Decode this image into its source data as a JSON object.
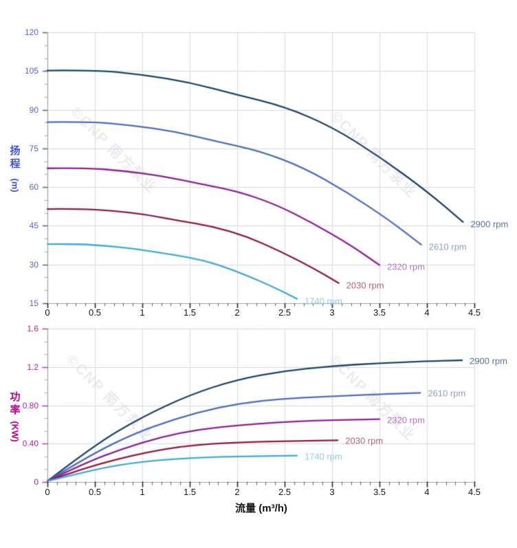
{
  "watermark": {
    "text": "©CNP 南方泵业",
    "color": "#ececf0"
  },
  "style": {
    "background": "#ffffff",
    "grid_color": "#d9d9d9",
    "spine_color": "#9aa0ab",
    "x_tick_color": "#23232b",
    "x_minor_tick_color": "#5a5a62",
    "x_tick_label_color": "#15151c",
    "x_title_color": "#121216",
    "head": {
      "axis_title_color": "#3b55e0",
      "tick_label_color": "#5465e6",
      "tick_color": "#5d6578",
      "minor_tick_color": "#97a0d0"
    },
    "power": {
      "axis_title_color": "#c2008f",
      "tick_label_color": "#cb1d9f",
      "tick_color": "#c23898",
      "minor_tick_color": "#ee86cc"
    }
  },
  "chart_data": [
    {
      "type": "line",
      "title": "",
      "xlabel": "",
      "ylabel": "扬程 (m)",
      "ylabel_chars": [
        "扬",
        "程"
      ],
      "ylabel_unit": "(m)",
      "xlim": [
        0,
        4.5
      ],
      "ylim": [
        15,
        120
      ],
      "grid": true,
      "legend_position": "line-end-labels",
      "x_ticks": [
        "0",
        "0.5",
        "1",
        "1.5",
        "2",
        "2.5",
        "3",
        "3.5",
        "4",
        "4.5"
      ],
      "y_ticks": [
        "15",
        "30",
        "45",
        "60",
        "75",
        "90",
        "105",
        "120"
      ],
      "x_minor_step": 0.1,
      "y_minor_step": 5,
      "series": [
        {
          "name": "2900 rpm",
          "color": "#17456e",
          "label_color": "#56779c",
          "points": [
            [
              0,
              105.2
            ],
            [
              0.5,
              105.4
            ],
            [
              1,
              103.6
            ],
            [
              1.5,
              100.6
            ],
            [
              2,
              95.8
            ],
            [
              2.5,
              91.2
            ],
            [
              3,
              83.4
            ],
            [
              3.5,
              71.8
            ],
            [
              4,
              58.4
            ],
            [
              4.38,
              46.5
            ]
          ]
        },
        {
          "name": "2610 rpm",
          "color": "#4a6cc0",
          "label_color": "#8c9fdc",
          "points": [
            [
              0,
              85.2
            ],
            [
              0.45,
              85.4
            ],
            [
              0.9,
              83.9
            ],
            [
              1.35,
              81.5
            ],
            [
              1.8,
              77.6
            ],
            [
              2.25,
              73.9
            ],
            [
              2.7,
              67.6
            ],
            [
              3.15,
              58.2
            ],
            [
              3.6,
              47.3
            ],
            [
              3.94,
              37.7
            ]
          ]
        },
        {
          "name": "2320 rpm",
          "color": "#8d1e97",
          "label_color": "#b873c8",
          "points": [
            [
              0,
              67.3
            ],
            [
              0.4,
              67.5
            ],
            [
              0.8,
              66.3
            ],
            [
              1.2,
              64.4
            ],
            [
              1.6,
              61.3
            ],
            [
              2.0,
              58.4
            ],
            [
              2.4,
              53.4
            ],
            [
              2.8,
              46.0
            ],
            [
              3.2,
              37.4
            ],
            [
              3.5,
              29.8
            ]
          ]
        },
        {
          "name": "2030 rpm",
          "color": "#8f1a39",
          "label_color": "#b9647f",
          "points": [
            [
              0,
              51.5
            ],
            [
              0.35,
              51.6
            ],
            [
              0.7,
              50.8
            ],
            [
              1.05,
              49.3
            ],
            [
              1.4,
              46.9
            ],
            [
              1.75,
              44.7
            ],
            [
              2.1,
              40.9
            ],
            [
              2.45,
              35.2
            ],
            [
              2.8,
              28.6
            ],
            [
              3.07,
              22.8
            ]
          ]
        },
        {
          "name": "1740 rpm",
          "color": "#3fa8dc",
          "label_color": "#90cbec",
          "points": [
            [
              0,
              37.9
            ],
            [
              0.3,
              38.0
            ],
            [
              0.6,
              37.3
            ],
            [
              0.9,
              36.2
            ],
            [
              1.2,
              34.5
            ],
            [
              1.5,
              32.8
            ],
            [
              1.8,
              30.0
            ],
            [
              2.1,
              25.8
            ],
            [
              2.4,
              21.0
            ],
            [
              2.63,
              16.7
            ]
          ]
        }
      ]
    },
    {
      "type": "line",
      "title": "",
      "xlabel": "流量 (m³/h)",
      "ylabel": "功率 (KW)",
      "ylabel_chars": [
        "功",
        "率"
      ],
      "ylabel_unit": "(KW)",
      "xlim": [
        0,
        4.5
      ],
      "ylim": [
        0,
        1.6
      ],
      "grid": true,
      "legend_position": "line-end-labels",
      "x_ticks": [
        "0",
        "0.5",
        "1",
        "1.5",
        "2",
        "2.5",
        "3",
        "3.5",
        "4",
        "4.5"
      ],
      "y_ticks": [
        "0",
        "0.40",
        "0.80",
        "1.2",
        "1.6"
      ],
      "x_minor_step": 0.1,
      "y_minor_step": 0.13333,
      "series": [
        {
          "name": "2900 rpm",
          "color": "#17456e",
          "label_color": "#56779c",
          "points": [
            [
              0,
              0.01
            ],
            [
              0.5,
              0.39
            ],
            [
              1,
              0.68
            ],
            [
              1.5,
              0.91
            ],
            [
              2,
              1.07
            ],
            [
              2.5,
              1.16
            ],
            [
              3,
              1.21
            ],
            [
              3.5,
              1.24
            ],
            [
              4,
              1.26
            ],
            [
              4.37,
              1.27
            ]
          ]
        },
        {
          "name": "2610 rpm",
          "color": "#4a6cc0",
          "label_color": "#8c9fdc",
          "points": [
            [
              0,
              0.01
            ],
            [
              0.45,
              0.28
            ],
            [
              0.9,
              0.5
            ],
            [
              1.35,
              0.66
            ],
            [
              1.8,
              0.78
            ],
            [
              2.25,
              0.85
            ],
            [
              2.7,
              0.88
            ],
            [
              3.15,
              0.9
            ],
            [
              3.6,
              0.92
            ],
            [
              3.93,
              0.93
            ]
          ]
        },
        {
          "name": "2320 rpm",
          "color": "#8d1e97",
          "label_color": "#b873c8",
          "points": [
            [
              0,
              0.01
            ],
            [
              0.4,
              0.2
            ],
            [
              0.8,
              0.35
            ],
            [
              1.2,
              0.47
            ],
            [
              1.6,
              0.55
            ],
            [
              2.0,
              0.59
            ],
            [
              2.4,
              0.62
            ],
            [
              2.8,
              0.64
            ],
            [
              3.2,
              0.65
            ],
            [
              3.5,
              0.655
            ]
          ]
        },
        {
          "name": "2030 rpm",
          "color": "#8f1a39",
          "label_color": "#b9647f",
          "points": [
            [
              0,
              0.01
            ],
            [
              0.35,
              0.13
            ],
            [
              0.7,
              0.23
            ],
            [
              1.05,
              0.31
            ],
            [
              1.4,
              0.37
            ],
            [
              1.75,
              0.4
            ],
            [
              2.1,
              0.415
            ],
            [
              2.45,
              0.425
            ],
            [
              2.8,
              0.43
            ],
            [
              3.06,
              0.435
            ]
          ]
        },
        {
          "name": "1740 rpm",
          "color": "#3fa8dc",
          "label_color": "#90cbec",
          "points": [
            [
              0,
              0.01
            ],
            [
              0.3,
              0.08
            ],
            [
              0.6,
              0.15
            ],
            [
              0.9,
              0.2
            ],
            [
              1.2,
              0.23
            ],
            [
              1.5,
              0.25
            ],
            [
              1.8,
              0.262
            ],
            [
              2.1,
              0.268
            ],
            [
              2.4,
              0.272
            ],
            [
              2.63,
              0.275
            ]
          ]
        }
      ]
    }
  ]
}
